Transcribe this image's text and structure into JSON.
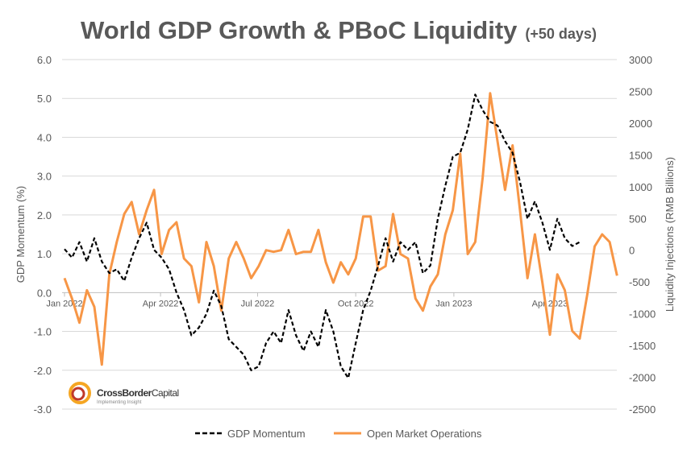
{
  "chart_data": {
    "type": "line",
    "title": "World GDP Growth & PBoC Liquidity",
    "subtitle": "(+50 days)",
    "ylabel": "GDP Momentum (%)",
    "y2label": "Liquidity Injections (RMB Billions)",
    "ylim": [
      -3.0,
      6.0
    ],
    "y2lim": [
      -2500,
      3000
    ],
    "yticks": [
      "6.0",
      "5.0",
      "4.0",
      "3.0",
      "2.0",
      "1.0",
      "0.0",
      "-1.0",
      "-2.0",
      "-3.0"
    ],
    "y2ticks": [
      "3000",
      "2500",
      "2000",
      "1500",
      "1000",
      "500",
      "0",
      "-500",
      "-1000",
      "-1500",
      "-2000",
      "-2500"
    ],
    "xticks": [
      {
        "label": "Jan 2022",
        "date": "2022-01-01"
      },
      {
        "label": "Apr 2022",
        "date": "2022-04-01"
      },
      {
        "label": "Jul 2022",
        "date": "2022-07-01"
      },
      {
        "label": "Oct 2022",
        "date": "2022-10-01"
      },
      {
        "label": "Jan 2023",
        "date": "2023-01-01"
      },
      {
        "label": "Apr 2023",
        "date": "2023-04-01"
      }
    ],
    "grid": true,
    "legend_placement": "bottom",
    "series": [
      {
        "name": "GDP Momentum",
        "axis": "left",
        "color": "#000000",
        "style": "dashed",
        "start_date": "2022-01-01",
        "frequency": "weekly",
        "values": [
          1.12,
          0.9,
          1.3,
          0.8,
          1.4,
          0.8,
          0.5,
          0.6,
          0.3,
          0.9,
          1.4,
          1.8,
          1.1,
          0.9,
          0.6,
          0.0,
          -0.45,
          -1.1,
          -0.9,
          -0.55,
          0.05,
          -0.35,
          -1.2,
          -1.4,
          -1.6,
          -2.0,
          -1.9,
          -1.3,
          -1.0,
          -1.3,
          -0.45,
          -1.1,
          -1.5,
          -1.0,
          -1.4,
          -0.45,
          -1.0,
          -1.9,
          -2.2,
          -1.3,
          -0.45,
          0.05,
          0.7,
          1.4,
          0.8,
          1.3,
          1.1,
          1.3,
          0.5,
          0.7,
          1.9,
          2.75,
          3.5,
          3.6,
          4.2,
          5.1,
          4.7,
          4.4,
          4.3,
          3.9,
          3.6,
          2.85,
          1.9,
          2.35,
          1.8,
          1.1,
          1.9,
          1.4,
          1.2,
          1.3
        ]
      },
      {
        "name": "Open Market Operations",
        "axis": "right",
        "color": "#f79646",
        "style": "solid",
        "start_date": "2022-01-01",
        "frequency": "weekly",
        "values": [
          -440,
          -760,
          -1140,
          -630,
          -890,
          -1800,
          -380,
          130,
          570,
          760,
          250,
          630,
          950,
          -60,
          320,
          440,
          -130,
          -250,
          -820,
          130,
          -250,
          -950,
          -130,
          130,
          -130,
          -440,
          -250,
          0,
          -25,
          0,
          320,
          -60,
          -25,
          -25,
          320,
          -190,
          -510,
          -190,
          -380,
          -130,
          530,
          530,
          -320,
          -250,
          570,
          -60,
          -130,
          -760,
          -950,
          -570,
          -380,
          250,
          630,
          1520,
          -60,
          130,
          1140,
          2470,
          1710,
          950,
          1650,
          630,
          -440,
          250,
          -510,
          -1330,
          -380,
          -630,
          -1270,
          -1390,
          -700,
          60,
          250,
          130,
          -400
        ]
      }
    ]
  },
  "logo": {
    "name": "CrossBorderCapital",
    "tagline": "Implementing Insight"
  }
}
